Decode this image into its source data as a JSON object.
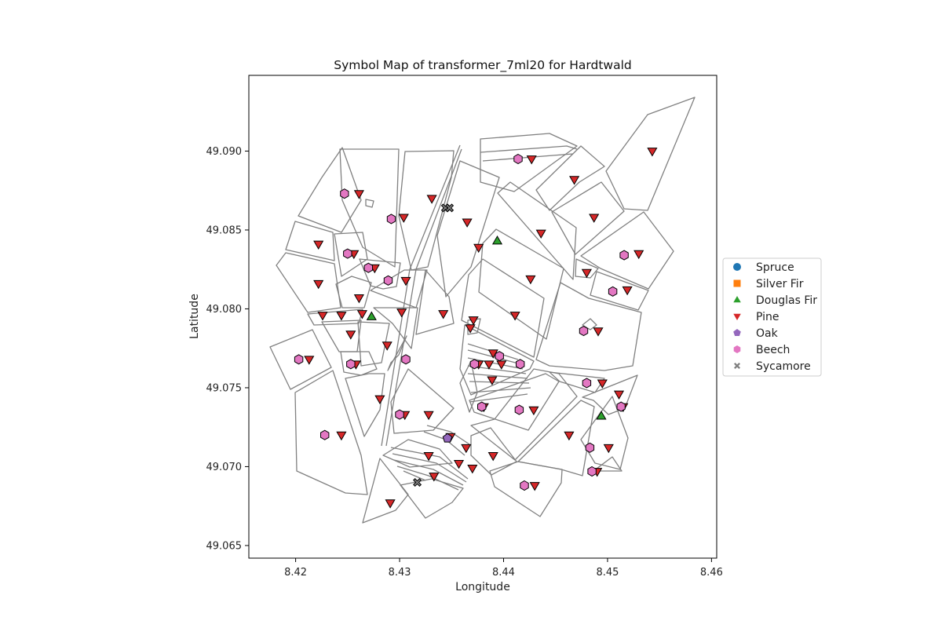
{
  "chart_data": {
    "type": "scatter",
    "title": "Symbol Map of transformer_7ml20 for Hardtwald",
    "xlabel": "Longitude",
    "ylabel": "Latitude",
    "xlim": [
      8.4155,
      8.4605
    ],
    "ylim": [
      49.0642,
      49.0948
    ],
    "xticks": [
      8.42,
      8.43,
      8.44,
      8.45,
      8.46
    ],
    "yticks": [
      49.065,
      49.07,
      49.075,
      49.08,
      49.085,
      49.09
    ],
    "xtick_labels": [
      "8.42",
      "8.43",
      "8.44",
      "8.45",
      "8.46"
    ],
    "ytick_labels": [
      "49.065",
      "49.070",
      "49.075",
      "49.080",
      "49.085",
      "49.090"
    ],
    "legend_position": "right",
    "legend": [
      {
        "label": "Spruce",
        "color": "#1f77b4",
        "marker": "circle"
      },
      {
        "label": "Silver Fir",
        "color": "#ff7f0e",
        "marker": "square"
      },
      {
        "label": "Douglas Fir",
        "color": "#2ca02c",
        "marker": "triangle-up"
      },
      {
        "label": "Pine",
        "color": "#d62728",
        "marker": "triangle-down"
      },
      {
        "label": "Oak",
        "color": "#9467bd",
        "marker": "pentagon"
      },
      {
        "label": "Beech",
        "color": "#e377c2",
        "marker": "hexagon"
      },
      {
        "label": "Sycamore",
        "color": "#7f7f7f",
        "marker": "x"
      }
    ],
    "series": [
      {
        "name": "Spruce",
        "points": []
      },
      {
        "name": "Silver Fir",
        "points": []
      },
      {
        "name": "Douglas Fir",
        "points": [
          [
            8.4394,
            49.0843
          ],
          [
            8.4273,
            49.0795
          ],
          [
            8.4494,
            49.0732
          ]
        ]
      },
      {
        "name": "Pine",
        "points": [
          [
            8.4543,
            49.09
          ],
          [
            8.4427,
            49.0895
          ],
          [
            8.4468,
            49.0882
          ],
          [
            8.4261,
            49.0873
          ],
          [
            8.4331,
            49.087
          ],
          [
            8.4304,
            49.0858
          ],
          [
            8.4365,
            49.0855
          ],
          [
            8.4487,
            49.0858
          ],
          [
            8.4436,
            49.0848
          ],
          [
            8.4222,
            49.0841
          ],
          [
            8.4256,
            49.0835
          ],
          [
            8.4376,
            49.0839
          ],
          [
            8.453,
            49.0835
          ],
          [
            8.4276,
            49.0826
          ],
          [
            8.448,
            49.0823
          ],
          [
            8.4222,
            49.0816
          ],
          [
            8.4306,
            49.0818
          ],
          [
            8.4426,
            49.0819
          ],
          [
            8.4519,
            49.0812
          ],
          [
            8.4261,
            49.0807
          ],
          [
            8.4302,
            49.0798
          ],
          [
            8.4342,
            49.0797
          ],
          [
            8.4226,
            49.0796
          ],
          [
            8.4244,
            49.0796
          ],
          [
            8.4264,
            49.0797
          ],
          [
            8.4411,
            49.0796
          ],
          [
            8.4371,
            49.0793
          ],
          [
            8.4368,
            49.0788
          ],
          [
            8.4253,
            49.0784
          ],
          [
            8.4491,
            49.0786
          ],
          [
            8.4288,
            49.0777
          ],
          [
            8.439,
            49.0772
          ],
          [
            8.4213,
            49.0768
          ],
          [
            8.4258,
            49.0765
          ],
          [
            8.4376,
            49.0765
          ],
          [
            8.4386,
            49.0765
          ],
          [
            8.4398,
            49.0765
          ],
          [
            8.4389,
            49.0755
          ],
          [
            8.4495,
            49.0753
          ],
          [
            8.4511,
            49.0746
          ],
          [
            8.4281,
            49.0743
          ],
          [
            8.4381,
            49.0738
          ],
          [
            8.4515,
            49.0738
          ],
          [
            8.4305,
            49.0733
          ],
          [
            8.4328,
            49.0733
          ],
          [
            8.4429,
            49.0736
          ],
          [
            8.4244,
            49.072
          ],
          [
            8.4349,
            49.0719
          ],
          [
            8.4463,
            49.072
          ],
          [
            8.4364,
            49.0712
          ],
          [
            8.4501,
            49.0712
          ],
          [
            8.4328,
            49.0707
          ],
          [
            8.439,
            49.0707
          ],
          [
            8.4357,
            49.0702
          ],
          [
            8.437,
            49.0699
          ],
          [
            8.449,
            49.0697
          ],
          [
            8.4333,
            49.0694
          ],
          [
            8.443,
            49.0688
          ],
          [
            8.4291,
            49.0677
          ]
        ]
      },
      {
        "name": "Oak",
        "points": [
          [
            8.4346,
            49.0718
          ]
        ]
      },
      {
        "name": "Beech",
        "points": [
          [
            8.4414,
            49.0895
          ],
          [
            8.4247,
            49.0873
          ],
          [
            8.4292,
            49.0857
          ],
          [
            8.425,
            49.0835
          ],
          [
            8.427,
            49.0826
          ],
          [
            8.4516,
            49.0834
          ],
          [
            8.4289,
            49.0818
          ],
          [
            8.4505,
            49.0811
          ],
          [
            8.4477,
            49.0786
          ],
          [
            8.4203,
            49.0768
          ],
          [
            8.4306,
            49.0768
          ],
          [
            8.4253,
            49.0765
          ],
          [
            8.4396,
            49.077
          ],
          [
            8.4372,
            49.0765
          ],
          [
            8.4416,
            49.0765
          ],
          [
            8.448,
            49.0753
          ],
          [
            8.4379,
            49.0738
          ],
          [
            8.4513,
            49.0738
          ],
          [
            8.4415,
            49.0736
          ],
          [
            8.43,
            49.0733
          ],
          [
            8.4228,
            49.072
          ],
          [
            8.4483,
            49.0712
          ],
          [
            8.4485,
            49.0697
          ],
          [
            8.442,
            49.0688
          ]
        ]
      },
      {
        "name": "Sycamore",
        "points": [
          [
            8.4344,
            49.0864
          ],
          [
            8.4348,
            49.0864
          ],
          [
            8.4317,
            49.069
          ]
        ]
      }
    ]
  }
}
